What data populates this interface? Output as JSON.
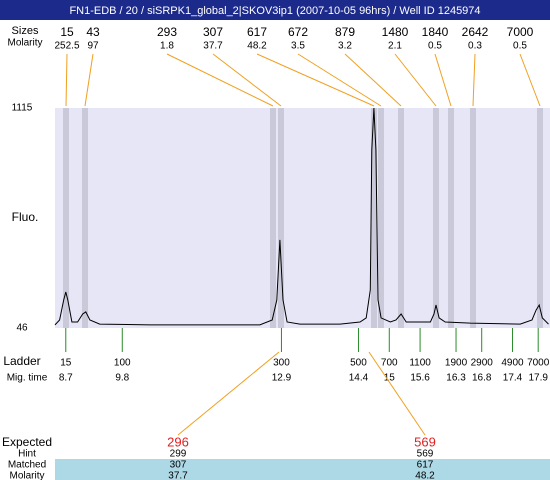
{
  "header": {
    "title": "FN1-EDB / 20 / siSRPK1_global_2|SKOV3ip1 (2007-10-05 96hrs) / Well ID 1245974"
  },
  "peaks": {
    "sizes_label": "Sizes",
    "sizes": [
      15,
      43,
      293,
      307,
      617,
      672,
      879,
      1480,
      1840,
      2642,
      7000
    ],
    "molarity_label": "Molarity",
    "molarity": [
      252.5,
      97,
      1.8,
      37.7,
      48.2,
      3.5,
      3.2,
      2.1,
      0.5,
      0.3,
      0.5
    ]
  },
  "chart_data": {
    "type": "line",
    "y_label": "Fluo.",
    "color": "#000000",
    "xlim": [
      8.49,
      18.13
    ],
    "ylim": [
      46,
      1115
    ],
    "yticks": [
      1115,
      46
    ],
    "x": [
      8.49,
      8.58,
      8.66,
      8.7,
      8.74,
      8.82,
      8.93,
      9.03,
      9.09,
      9.17,
      9.36,
      10.34,
      11.31,
      12.48,
      12.72,
      12.81,
      12.87,
      12.93,
      13.01,
      13.26,
      14.04,
      14.43,
      14.55,
      14.63,
      14.66,
      14.7,
      14.74,
      14.78,
      14.84,
      15.02,
      15.13,
      15.23,
      15.33,
      15.8,
      15.87,
      15.91,
      15.97,
      16.09,
      16.58,
      17.55,
      17.78,
      17.86,
      17.92,
      17.98,
      18.1
    ],
    "values": [
      61,
      85,
      182,
      221,
      182,
      75,
      75,
      114,
      124,
      85,
      65,
      61,
      61,
      61,
      85,
      182,
      474,
      182,
      75,
      65,
      65,
      75,
      95,
      231,
      911,
      1115,
      911,
      182,
      95,
      75,
      85,
      114,
      75,
      75,
      114,
      158,
      95,
      75,
      70,
      65,
      85,
      133,
      158,
      95,
      65
    ]
  },
  "ladder": {
    "label": "Ladder",
    "sizes": [
      15,
      100,
      300,
      500,
      700,
      1100,
      1900,
      2900,
      4900,
      7000
    ],
    "mig_time_label": "Mig. time",
    "mig_time": [
      8.7,
      9.8,
      12.9,
      14.4,
      15,
      15.6,
      16.3,
      16.8,
      17.4,
      17.9
    ]
  },
  "expected": {
    "row_labels": [
      "Expected",
      "Hint",
      "Matched",
      "Molarity"
    ],
    "rows": [
      [
        296,
        569
      ],
      [
        299,
        569
      ],
      [
        307,
        617
      ],
      [
        37.7,
        48.2
      ]
    ]
  }
}
